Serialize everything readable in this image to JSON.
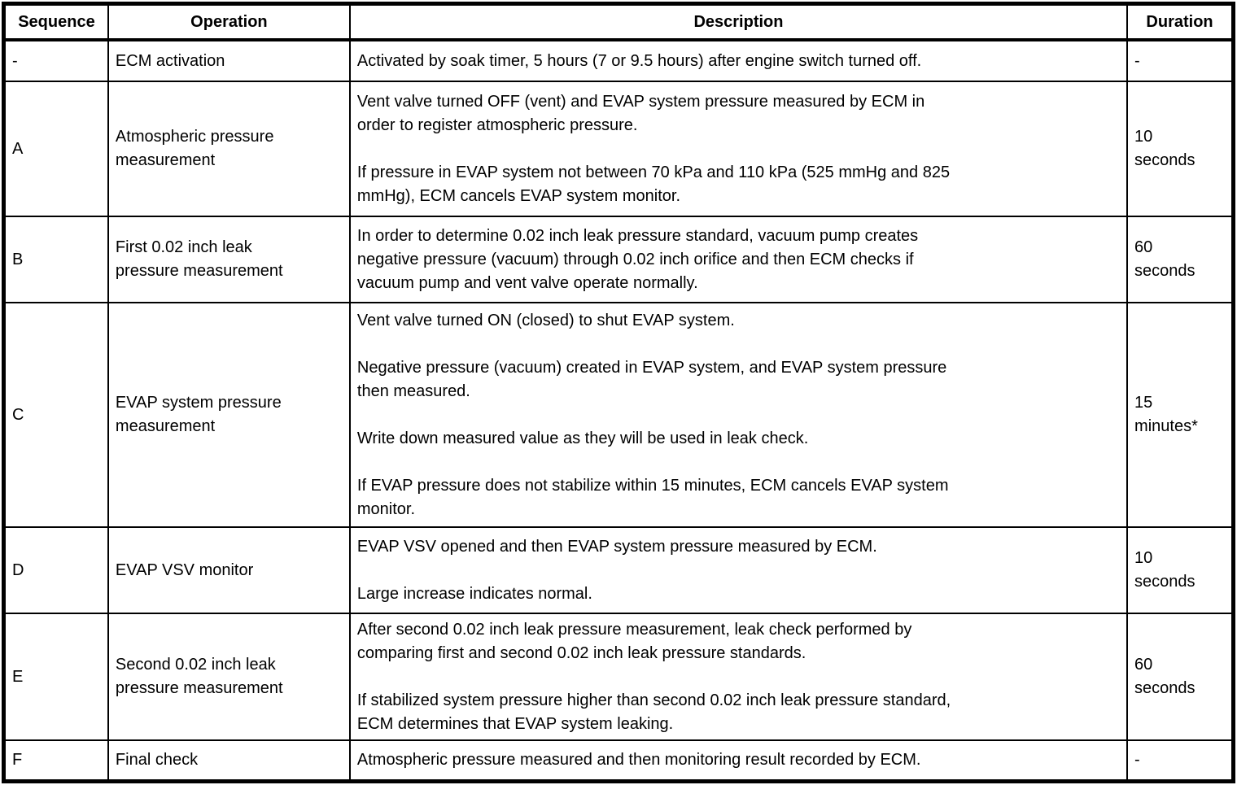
{
  "table": {
    "headers": {
      "sequence": "Sequence",
      "operation": "Operation",
      "description": "Description",
      "duration": "Duration"
    },
    "rows": [
      {
        "sequence": "-",
        "operation": "ECM activation",
        "description": [
          "Activated by soak timer, 5 hours (7 or 9.5 hours) after engine switch turned off."
        ],
        "duration": "-"
      },
      {
        "sequence": "A",
        "operation": "Atmospheric pressure\nmeasurement",
        "description": [
          "Vent valve turned OFF (vent) and EVAP system pressure measured by ECM in\norder to register atmospheric pressure.",
          "If pressure in EVAP system not between 70 kPa and 110 kPa (525 mmHg and 825\nmmHg), ECM cancels EVAP system monitor."
        ],
        "duration": "10\nseconds"
      },
      {
        "sequence": "B",
        "operation": "First 0.02 inch leak\npressure measurement",
        "description": [
          "In order to determine 0.02 inch leak pressure standard, vacuum pump creates\nnegative pressure (vacuum) through 0.02 inch orifice and then ECM checks if\nvacuum pump and vent valve operate normally."
        ],
        "duration": "60\nseconds"
      },
      {
        "sequence": "C",
        "operation": "EVAP system pressure\nmeasurement",
        "description": [
          "Vent valve turned ON (closed) to shut EVAP system.",
          "Negative pressure (vacuum) created in EVAP system, and EVAP system pressure\nthen measured.",
          "Write down measured value as they will be used in leak check.",
          "If EVAP pressure does not stabilize within 15 minutes, ECM cancels EVAP system\nmonitor."
        ],
        "duration": "15\nminutes*"
      },
      {
        "sequence": "D",
        "operation": "EVAP VSV monitor",
        "description": [
          "EVAP VSV opened and then EVAP system pressure measured by ECM.",
          "Large increase indicates normal."
        ],
        "duration": "10\nseconds"
      },
      {
        "sequence": "E",
        "operation": "Second 0.02 inch leak\npressure measurement",
        "description": [
          "After second 0.02 inch leak pressure measurement, leak check performed by\ncomparing first and second 0.02 inch leak pressure standards.",
          "If stabilized system pressure higher than second 0.02 inch leak pressure standard,\nECM determines that EVAP system leaking."
        ],
        "duration": "60\nseconds"
      },
      {
        "sequence": "F",
        "operation": "Final check",
        "description": [
          "Atmospheric pressure measured and then monitoring result recorded by ECM."
        ],
        "duration": "-"
      }
    ]
  }
}
